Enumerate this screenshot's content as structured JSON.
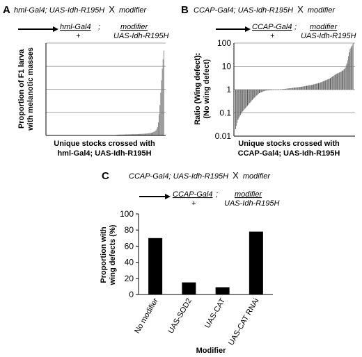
{
  "panel_a": {
    "letter": "A",
    "cross_title": "hml-Gal4; UAS-Idh-R195H",
    "cross_x": "X",
    "cross_modifier": "modifier",
    "geno_left_top": "hml-Gal4",
    "geno_sep": ";",
    "geno_left_bottom": "+",
    "geno_right_top": "modifier",
    "geno_right_bottom": "UAS-Idh-R195H"
  },
  "panel_b": {
    "letter": "B",
    "cross_title": "CCAP-Gal4; UAS-Idh-R195H",
    "cross_x": "X",
    "cross_modifier": "modifier",
    "geno_left_top": "CCAP-Gal4",
    "geno_sep": ";",
    "geno_left_bottom": "+",
    "geno_right_top": "modifier",
    "geno_right_bottom": "UAS-Idh-R195H"
  },
  "panel_c": {
    "letter": "C",
    "cross_title": "CCAP-Gal4; UAS-Idh-R195H",
    "cross_x": "X",
    "cross_modifier": "modifier",
    "geno_left_top": "CCAP-Gal4",
    "geno_sep": ";",
    "geno_left_bottom": "+",
    "geno_right_top": "modifier",
    "geno_right_bottom": "UAS-Idh-R195H"
  },
  "chart_data": [
    {
      "id": "A",
      "type": "bar",
      "ylabel_line1": "Proportion of F1 larva",
      "ylabel_line2": "with melanotic masses",
      "xlabel_line1": "Unique stocks crossed with",
      "xlabel_line2": "hml-Gal4; UAS-Idh-R195H",
      "ylim": [
        0,
        1
      ],
      "grid": true,
      "n_bars": 150,
      "values_sorted_profile": [
        [
          0,
          0
        ],
        [
          0.58,
          0
        ],
        [
          0.6,
          0.008
        ],
        [
          0.7,
          0.012
        ],
        [
          0.78,
          0.015
        ],
        [
          0.85,
          0.02
        ],
        [
          0.9,
          0.03
        ],
        [
          0.93,
          0.05
        ],
        [
          0.95,
          0.1
        ],
        [
          0.965,
          0.3
        ],
        [
          0.975,
          0.5
        ],
        [
          0.985,
          0.7
        ],
        [
          0.995,
          0.85
        ],
        [
          1,
          0.92
        ]
      ]
    },
    {
      "id": "B",
      "type": "bar",
      "scale": "log",
      "ylabel_line1": "Ratio (Wing defect):",
      "ylabel_line2": "(No wing defect)",
      "xlabel_line1": "Unique stocks crossed with",
      "xlabel_line2": "CCAP-Gal4; UAS-Idh-R195H",
      "ylim": [
        0.01,
        100
      ],
      "y_ticks": [
        "0.01",
        "0.1",
        "1",
        "10",
        "100"
      ],
      "y_tick_values": [
        0.01,
        0.1,
        1,
        10,
        100
      ],
      "grid": true,
      "n_bars": 150,
      "values_sorted_profile": [
        [
          0,
          0.02
        ],
        [
          0.02,
          0.05
        ],
        [
          0.05,
          0.1
        ],
        [
          0.1,
          0.2
        ],
        [
          0.15,
          0.4
        ],
        [
          0.2,
          0.7
        ],
        [
          0.25,
          0.9
        ],
        [
          0.4,
          1.05
        ],
        [
          0.55,
          1.3
        ],
        [
          0.65,
          1.6
        ],
        [
          0.72,
          2.0
        ],
        [
          0.8,
          3.0
        ],
        [
          0.85,
          4.5
        ],
        [
          0.9,
          6.0
        ],
        [
          0.93,
          8.0
        ],
        [
          0.95,
          15
        ],
        [
          0.97,
          50
        ],
        [
          1,
          100
        ]
      ]
    },
    {
      "id": "C",
      "type": "bar",
      "categories": [
        "No modifier",
        "UAS-SOD2",
        "UAS-CAT",
        "UAS-CAT RNAi"
      ],
      "values": [
        70,
        15,
        9,
        78
      ],
      "ylabel_line1": "Proportion with",
      "ylabel_line2": "wing defects (%)",
      "xlabel": "Modifier",
      "ylim": [
        0,
        100
      ],
      "y_ticks": [
        "0",
        "20",
        "40",
        "60",
        "80",
        "100"
      ],
      "y_tick_values": [
        0,
        20,
        40,
        60,
        80,
        100
      ],
      "grid": false
    }
  ]
}
